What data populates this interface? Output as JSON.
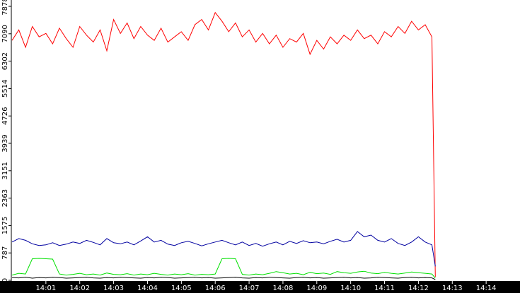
{
  "chart_data": {
    "type": "line",
    "x": [
      840,
      840.2,
      840.4,
      840.6,
      840.8,
      841,
      841.2,
      841.4,
      841.6,
      841.8,
      842,
      842.2,
      842.4,
      842.6,
      842.8,
      843,
      843.2,
      843.4,
      843.6,
      843.8,
      844,
      844.2,
      844.4,
      844.6,
      844.8,
      845,
      845.2,
      845.4,
      845.6,
      845.8,
      846,
      846.2,
      846.4,
      846.6,
      846.8,
      847,
      847.2,
      847.4,
      847.6,
      847.8,
      848,
      848.2,
      848.4,
      848.6,
      848.8,
      849,
      849.2,
      849.4,
      849.6,
      849.8,
      850,
      850.2,
      850.4,
      850.6,
      850.8,
      851,
      851.2,
      851.4,
      851.6,
      851.8,
      852,
      852.2,
      852.4,
      852.5
    ],
    "series": [
      {
        "color": "#ff0000",
        "values": [
          6900,
          7200,
          6700,
          7300,
          7000,
          7100,
          6800,
          7250,
          6950,
          6700,
          7300,
          7050,
          6850,
          7200,
          6600,
          7500,
          7100,
          7400,
          6950,
          7300,
          7050,
          6900,
          7250,
          6850,
          7000,
          7150,
          6900,
          7350,
          7500,
          7200,
          7700,
          7450,
          7150,
          7400,
          7000,
          7200,
          6850,
          7100,
          6800,
          7050,
          6700,
          6950,
          6850,
          7100,
          6500,
          6900,
          6650,
          7000,
          6800,
          7050,
          6900,
          7200,
          6950,
          7050,
          6800,
          7150,
          7000,
          7300,
          7100,
          7450,
          7200,
          7350,
          7000,
          100
        ]
      },
      {
        "color": "#0000a0",
        "values": [
          1100,
          1200,
          1150,
          1050,
          1000,
          1020,
          1080,
          1000,
          1040,
          1100,
          1060,
          1150,
          1090,
          1020,
          1200,
          1080,
          1050,
          1100,
          1020,
          1130,
          1250,
          1100,
          1150,
          1040,
          1000,
          1080,
          1120,
          1060,
          990,
          1050,
          1100,
          1150,
          1080,
          1020,
          1100,
          1000,
          1060,
          980,
          1050,
          1100,
          1020,
          1120,
          1060,
          1140,
          1080,
          1100,
          1050,
          1120,
          1180,
          1100,
          1150,
          1400,
          1250,
          1300,
          1150,
          1100,
          1200,
          1060,
          1000,
          1100,
          1250,
          1100,
          1020,
          400
        ]
      },
      {
        "color": "#00e000",
        "values": [
          150,
          200,
          180,
          620,
          630,
          620,
          610,
          180,
          150,
          170,
          200,
          160,
          180,
          150,
          210,
          170,
          160,
          190,
          150,
          180,
          160,
          200,
          170,
          150,
          180,
          160,
          190,
          150,
          170,
          160,
          180,
          620,
          630,
          620,
          170,
          150,
          180,
          160,
          200,
          250,
          220,
          180,
          200,
          160,
          230,
          190,
          210,
          170,
          250,
          220,
          200,
          240,
          260,
          210,
          190,
          230,
          200,
          180,
          210,
          240,
          220,
          200,
          180,
          60
        ]
      },
      {
        "color": "#000000",
        "values": [
          80,
          70,
          90,
          60,
          80,
          70,
          90,
          80,
          60,
          70,
          80,
          90,
          70,
          60,
          80,
          70,
          90,
          80,
          70,
          60,
          80,
          70,
          90,
          80,
          60,
          70,
          80,
          90,
          70,
          80,
          60,
          70,
          80,
          90,
          70,
          60,
          80,
          70,
          90,
          80,
          70,
          60,
          80,
          90,
          70,
          80,
          60,
          70,
          80,
          90,
          70,
          80,
          60,
          70,
          90,
          80,
          70,
          60,
          80,
          90,
          70,
          80,
          70,
          20
        ]
      }
    ],
    "xlim": [
      840,
      855
    ],
    "xticks": [
      {
        "value": 841,
        "label": "14:01"
      },
      {
        "value": 842,
        "label": "14:02"
      },
      {
        "value": 843,
        "label": "14:03"
      },
      {
        "value": 844,
        "label": "14:04"
      },
      {
        "value": 845,
        "label": "14:05"
      },
      {
        "value": 846,
        "label": "14:06"
      },
      {
        "value": 847,
        "label": "14:07"
      },
      {
        "value": 848,
        "label": "14:08"
      },
      {
        "value": 849,
        "label": "14:09"
      },
      {
        "value": 850,
        "label": "14:10"
      },
      {
        "value": 851,
        "label": "14:11"
      },
      {
        "value": 852,
        "label": "14:12"
      },
      {
        "value": 853,
        "label": "14:13"
      },
      {
        "value": 854,
        "label": "14:14"
      }
    ],
    "ylim": [
      0,
      7878
    ],
    "yticks": [
      0,
      787,
      1575,
      2363,
      3151,
      3939,
      4726,
      5514,
      6302,
      7090,
      7878
    ]
  }
}
